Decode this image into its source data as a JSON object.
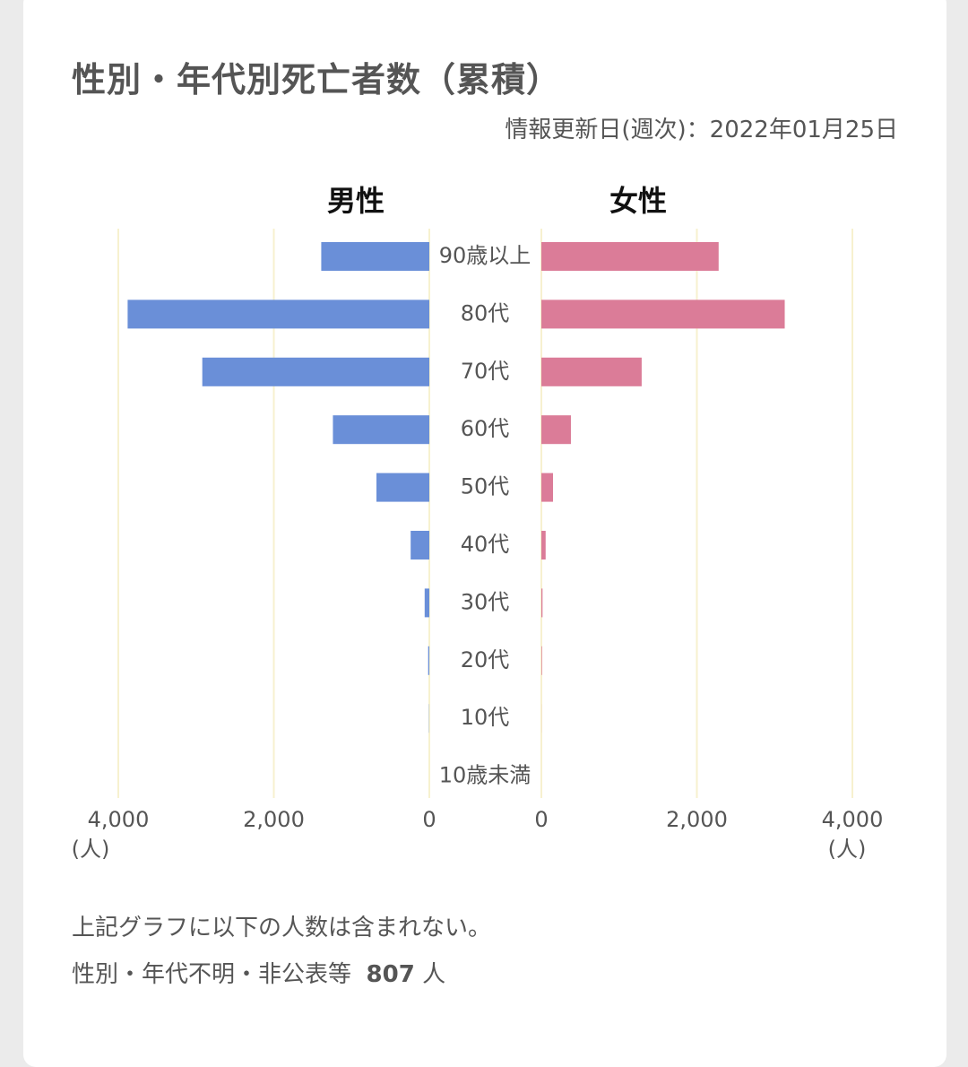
{
  "header": {
    "title": "性別・年代別死亡者数（累積）",
    "updated": "情報更新日(週次)：2022年01月25日"
  },
  "chart_data": {
    "type": "bar",
    "orientation": "horizontal-population-pyramid",
    "categories": [
      "90歳以上",
      "80代",
      "70代",
      "60代",
      "50代",
      "40代",
      "30代",
      "20代",
      "10代",
      "10歳未満"
    ],
    "series": [
      {
        "name": "男性",
        "color": "#6a8fd8",
        "values": [
          1390,
          3880,
          2920,
          1240,
          680,
          240,
          60,
          15,
          3,
          0
        ]
      },
      {
        "name": "女性",
        "color": "#db7c98",
        "values": [
          2280,
          3130,
          1290,
          380,
          150,
          55,
          15,
          8,
          1,
          0
        ]
      }
    ],
    "xlim": [
      0,
      4000
    ],
    "ticks": [
      "4,000",
      "2,000",
      "0",
      "0",
      "2,000",
      "4,000"
    ],
    "unit": "(人)",
    "grid": true,
    "grid_color": "#f7f1cf"
  },
  "notes": {
    "line1": "上記グラフに以下の人数は含まれない。",
    "line2_prefix": "性別・年代不明・非公表等",
    "line2_value": "807",
    "line2_unit": "人"
  }
}
